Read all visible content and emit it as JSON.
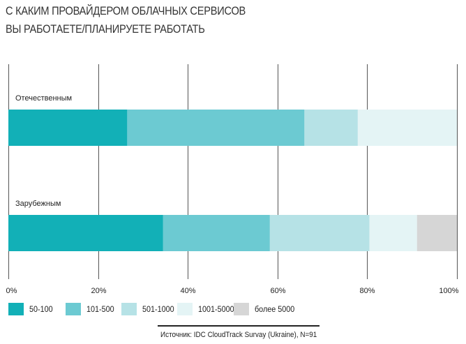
{
  "title": {
    "line1": "С КАКИМ ПРОВАЙДЕРОМ ОБЛАЧНЫХ СЕРВИСОВ",
    "line2": "ВЫ РАБОТАЕТЕ/ПЛАНИРУЕТЕ РАБОТАТЬ"
  },
  "chart_data": {
    "type": "bar",
    "orientation": "horizontal",
    "stacked": true,
    "xlim": [
      0,
      100
    ],
    "x_ticks": [
      "0%",
      "20%",
      "40%",
      "60%",
      "80%",
      "100%"
    ],
    "categories": [
      "Отечественным",
      "Зарубежным"
    ],
    "series": [
      {
        "name": "50-100",
        "color": "#12b0b7",
        "values": [
          26.5,
          34.5
        ]
      },
      {
        "name": "101-500",
        "color": "#6ccad2",
        "values": [
          39.5,
          23.8
        ]
      },
      {
        "name": "501-1000",
        "color": "#b6e2e6",
        "values": [
          11.9,
          22.2
        ]
      },
      {
        "name": "1001-5000",
        "color": "#e4f4f5",
        "values": [
          22.1,
          10.6
        ]
      },
      {
        "name": "более 5000",
        "color": "#d6d6d6",
        "values": [
          0,
          8.9
        ]
      }
    ],
    "grid": true,
    "legend_position": "bottom"
  },
  "source": "Источник: IDC CloudTrack Survay (Ukraine), N=91"
}
